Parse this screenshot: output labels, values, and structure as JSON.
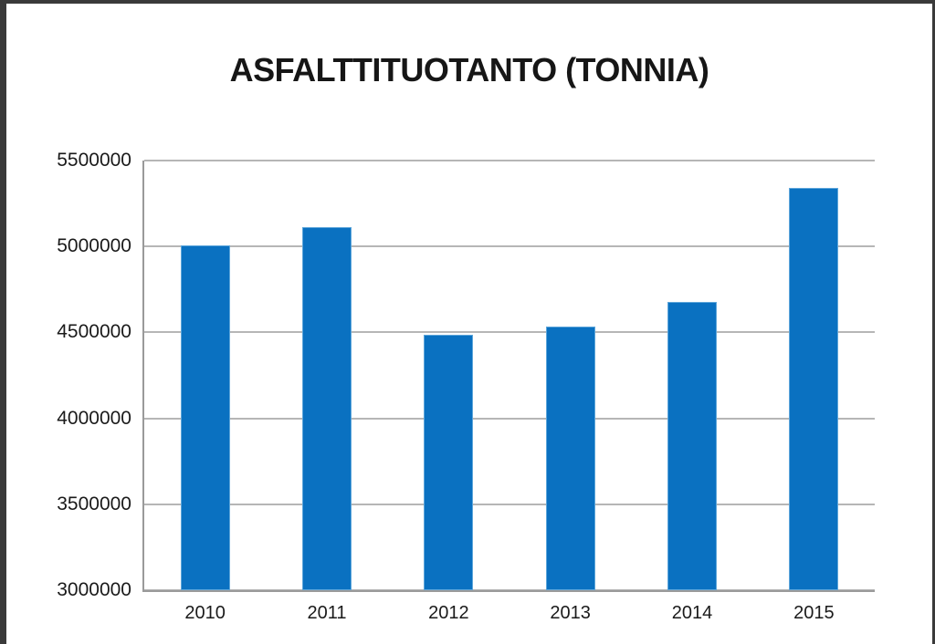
{
  "page": {
    "background_color": "#ffffff",
    "frame_color": "#3a3a3a"
  },
  "chart_data": {
    "type": "bar",
    "title": "ASFALTTITUOTANTO (TONNIA)",
    "categories": [
      "2010",
      "2011",
      "2012",
      "2013",
      "2014",
      "2015"
    ],
    "values": [
      5005000,
      5110000,
      4485000,
      4535000,
      4680000,
      5340000
    ],
    "xlabel": "",
    "ylabel": "",
    "ylim": [
      3000000,
      5500000
    ],
    "ytick_step": 500000,
    "yticks": [
      "5500000",
      "5000000",
      "4500000",
      "4000000",
      "3500000",
      "3000000"
    ],
    "grid": true,
    "legend_position": "none",
    "bar_color": "#0a71c1",
    "bar_border_color": "#5ea6da",
    "gridline_color": "#b6b6b6",
    "axis_line_color": "#9a9a9a",
    "text_color": "#1a1a1a",
    "title_color": "#161616"
  }
}
